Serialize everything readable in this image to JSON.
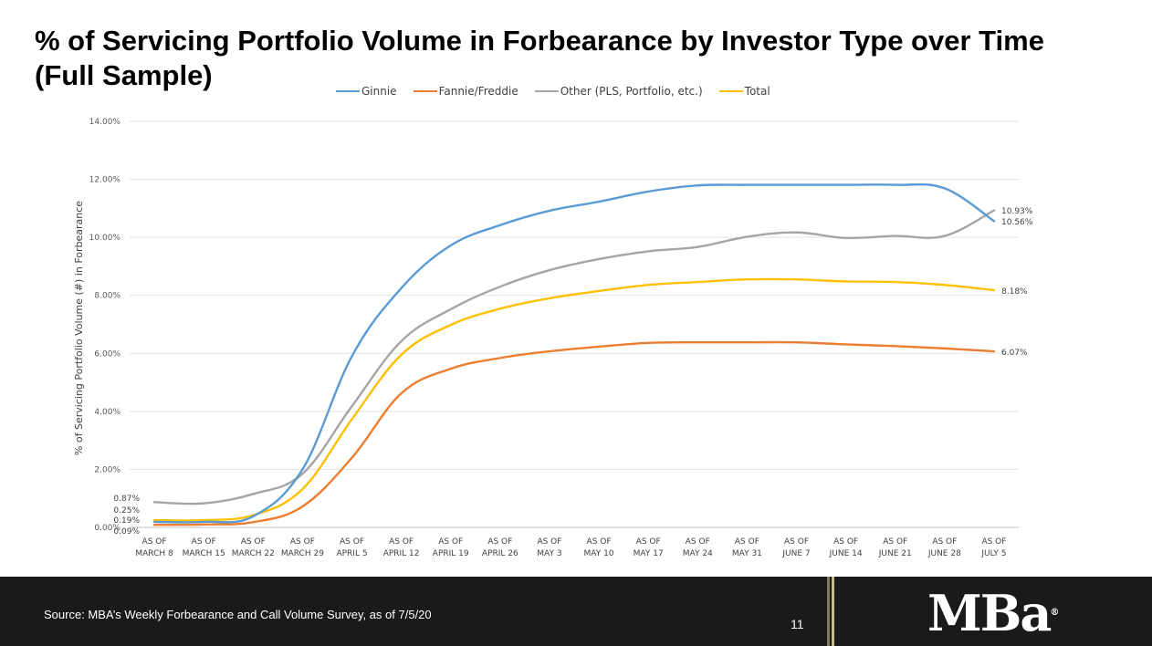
{
  "slide": {
    "title_line1": "% of Servicing Portfolio Volume in Forbearance by Investor Type over Time",
    "title_line2": "(Full Sample)",
    "source": "Source: MBA’s Weekly Forbearance and Call Volume Survey, as of 7/5/20",
    "page_number": "11",
    "logo_text": "MBa",
    "logo_mark": "®"
  },
  "chart_data": {
    "type": "line",
    "title": "",
    "xlabel": "",
    "ylabel": "% of Servicing Portfolio Volume (#) in Forbearance",
    "ylim": [
      0,
      14
    ],
    "yticks": [
      "0.00%",
      "2.00%",
      "4.00%",
      "6.00%",
      "8.00%",
      "10.00%",
      "12.00%",
      "14.00%"
    ],
    "grid": true,
    "legend_position": "top",
    "categories": [
      [
        "AS OF",
        "MARCH 8"
      ],
      [
        "AS OF",
        "MARCH 15"
      ],
      [
        "AS OF",
        "MARCH 22"
      ],
      [
        "AS OF",
        "MARCH 29"
      ],
      [
        "AS OF",
        "APRIL 5"
      ],
      [
        "AS OF",
        "APRIL 12"
      ],
      [
        "AS OF",
        "APRIL 19"
      ],
      [
        "AS OF",
        "APRIL 26"
      ],
      [
        "AS OF",
        "MAY 3"
      ],
      [
        "AS OF",
        "MAY 10"
      ],
      [
        "AS OF",
        "MAY 17"
      ],
      [
        "AS OF",
        "MAY 24"
      ],
      [
        "AS OF",
        "MAY 31"
      ],
      [
        "AS OF",
        "JUNE 7"
      ],
      [
        "AS OF",
        "JUNE 14"
      ],
      [
        "AS OF",
        "JUNE 21"
      ],
      [
        "AS OF",
        "JUNE 28"
      ],
      [
        "AS OF",
        "JULY 5"
      ]
    ],
    "series": [
      {
        "name": "Ginnie",
        "color": "#5b9bd5",
        "values": [
          0.19,
          0.19,
          0.38,
          2.0,
          5.9,
          8.25,
          9.72,
          10.42,
          10.92,
          11.23,
          11.58,
          11.79,
          11.81,
          11.81,
          11.81,
          11.81,
          11.69,
          10.56
        ]
      },
      {
        "name": "Fannie/Freddie",
        "color": "#ed7d31",
        "values": [
          0.09,
          0.1,
          0.18,
          0.72,
          2.4,
          4.62,
          5.47,
          5.84,
          6.07,
          6.23,
          6.36,
          6.38,
          6.38,
          6.38,
          6.31,
          6.25,
          6.17,
          6.07
        ]
      },
      {
        "name": "Other (PLS, Portfolio, etc.)",
        "color": "#a5a5a5",
        "values": [
          0.87,
          0.83,
          1.15,
          1.85,
          4.18,
          6.42,
          7.52,
          8.3,
          8.87,
          9.25,
          9.52,
          9.67,
          10.02,
          10.17,
          9.98,
          10.05,
          10.05,
          10.93
        ]
      },
      {
        "name": "Total",
        "color": "#ffc000",
        "values": [
          0.25,
          0.25,
          0.42,
          1.32,
          3.73,
          5.95,
          6.98,
          7.54,
          7.9,
          8.15,
          8.36,
          8.46,
          8.55,
          8.55,
          8.48,
          8.46,
          8.36,
          8.18
        ]
      }
    ],
    "data_labels": {
      "start": [
        "0.87%",
        "0.25%",
        "0.19%",
        "0.09%"
      ],
      "end": [
        "10.93%",
        "10.56%",
        "8.18%",
        "6.07%"
      ]
    }
  }
}
